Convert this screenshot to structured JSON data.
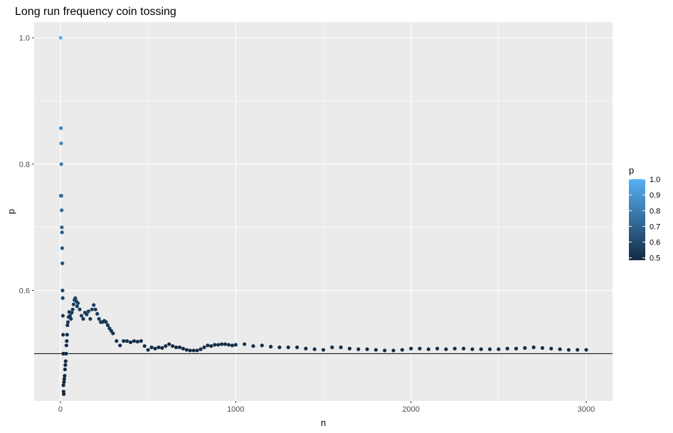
{
  "chart_data": {
    "type": "scatter",
    "title": "Long run frequency coin tossing",
    "xlabel": "n",
    "ylabel": "p",
    "xlim": [
      -150,
      3150
    ],
    "ylim": [
      0.425,
      1.025
    ],
    "x_ticks": [
      0,
      1000,
      2000,
      3000
    ],
    "x_tick_labels": [
      "0",
      "1000",
      "2000",
      "3000"
    ],
    "y_ticks": [
      0.6,
      0.8,
      1.0
    ],
    "y_tick_labels": [
      "0.6",
      "0.8",
      "1.0"
    ],
    "grid": true,
    "reference_line": {
      "y": 0.5,
      "color": "#000000"
    },
    "color_scale": {
      "title": "p",
      "low": 0.5,
      "high": 1.0,
      "low_color": "#132b43",
      "high_color": "#56b1f7",
      "breaks": [
        0.5,
        0.6,
        0.7,
        0.8,
        0.9,
        1.0
      ],
      "break_labels": [
        "0.5",
        "0.6",
        "0.7",
        "0.8",
        "0.9",
        "1.0"
      ],
      "placement": "right"
    },
    "series": [
      {
        "x": [
          1,
          2,
          3,
          4,
          5,
          6,
          7,
          8,
          9,
          10,
          11,
          12,
          13,
          14,
          15,
          16,
          17,
          18,
          19,
          20,
          22,
          24,
          26,
          28,
          30,
          32,
          34,
          36,
          38,
          40,
          43,
          46,
          50,
          55,
          60,
          65,
          70,
          75,
          80,
          85,
          90,
          95,
          100,
          110,
          120,
          130,
          140,
          150,
          160,
          170,
          180,
          190,
          200,
          210,
          220,
          230,
          240,
          250,
          260,
          270,
          280,
          290,
          300,
          320,
          340,
          360,
          380,
          400,
          420,
          440,
          460,
          480,
          500,
          520,
          540,
          560,
          580,
          600,
          620,
          640,
          660,
          680,
          700,
          720,
          740,
          760,
          780,
          800,
          820,
          840,
          860,
          880,
          900,
          920,
          940,
          960,
          980,
          1000,
          1050,
          1100,
          1150,
          1200,
          1250,
          1300,
          1350,
          1400,
          1450,
          1500,
          1550,
          1600,
          1650,
          1700,
          1750,
          1800,
          1850,
          1900,
          1950,
          2000,
          2050,
          2100,
          2150,
          2200,
          2250,
          2300,
          2350,
          2400,
          2450,
          2500,
          2550,
          2600,
          2650,
          2700,
          2750,
          2800,
          2850,
          2900,
          2950,
          3000
        ],
        "p": [
          1.0,
          0.75,
          0.857,
          0.833,
          0.8,
          0.75,
          0.727,
          0.7,
          0.692,
          0.667,
          0.643,
          0.6,
          0.588,
          0.56,
          0.53,
          0.5,
          0.45,
          0.44,
          0.436,
          0.455,
          0.46,
          0.465,
          0.475,
          0.482,
          0.488,
          0.5,
          0.513,
          0.52,
          0.53,
          0.545,
          0.55,
          0.558,
          0.566,
          0.56,
          0.555,
          0.565,
          0.57,
          0.578,
          0.585,
          0.588,
          0.583,
          0.575,
          0.58,
          0.57,
          0.56,
          0.555,
          0.565,
          0.562,
          0.567,
          0.555,
          0.57,
          0.577,
          0.57,
          0.563,
          0.555,
          0.55,
          0.55,
          0.552,
          0.55,
          0.545,
          0.54,
          0.536,
          0.532,
          0.52,
          0.513,
          0.52,
          0.52,
          0.518,
          0.52,
          0.519,
          0.52,
          0.512,
          0.506,
          0.51,
          0.508,
          0.51,
          0.509,
          0.512,
          0.515,
          0.512,
          0.51,
          0.51,
          0.508,
          0.506,
          0.505,
          0.505,
          0.505,
          0.507,
          0.51,
          0.513,
          0.512,
          0.514,
          0.514,
          0.515,
          0.515,
          0.514,
          0.513,
          0.514,
          0.515,
          0.512,
          0.513,
          0.511,
          0.51,
          0.51,
          0.51,
          0.508,
          0.507,
          0.506,
          0.51,
          0.51,
          0.508,
          0.507,
          0.507,
          0.506,
          0.505,
          0.505,
          0.506,
          0.508,
          0.508,
          0.507,
          0.508,
          0.507,
          0.508,
          0.508,
          0.507,
          0.507,
          0.507,
          0.507,
          0.508,
          0.508,
          0.509,
          0.51,
          0.509,
          0.508,
          0.507,
          0.506,
          0.506,
          0.506
        ]
      }
    ]
  }
}
